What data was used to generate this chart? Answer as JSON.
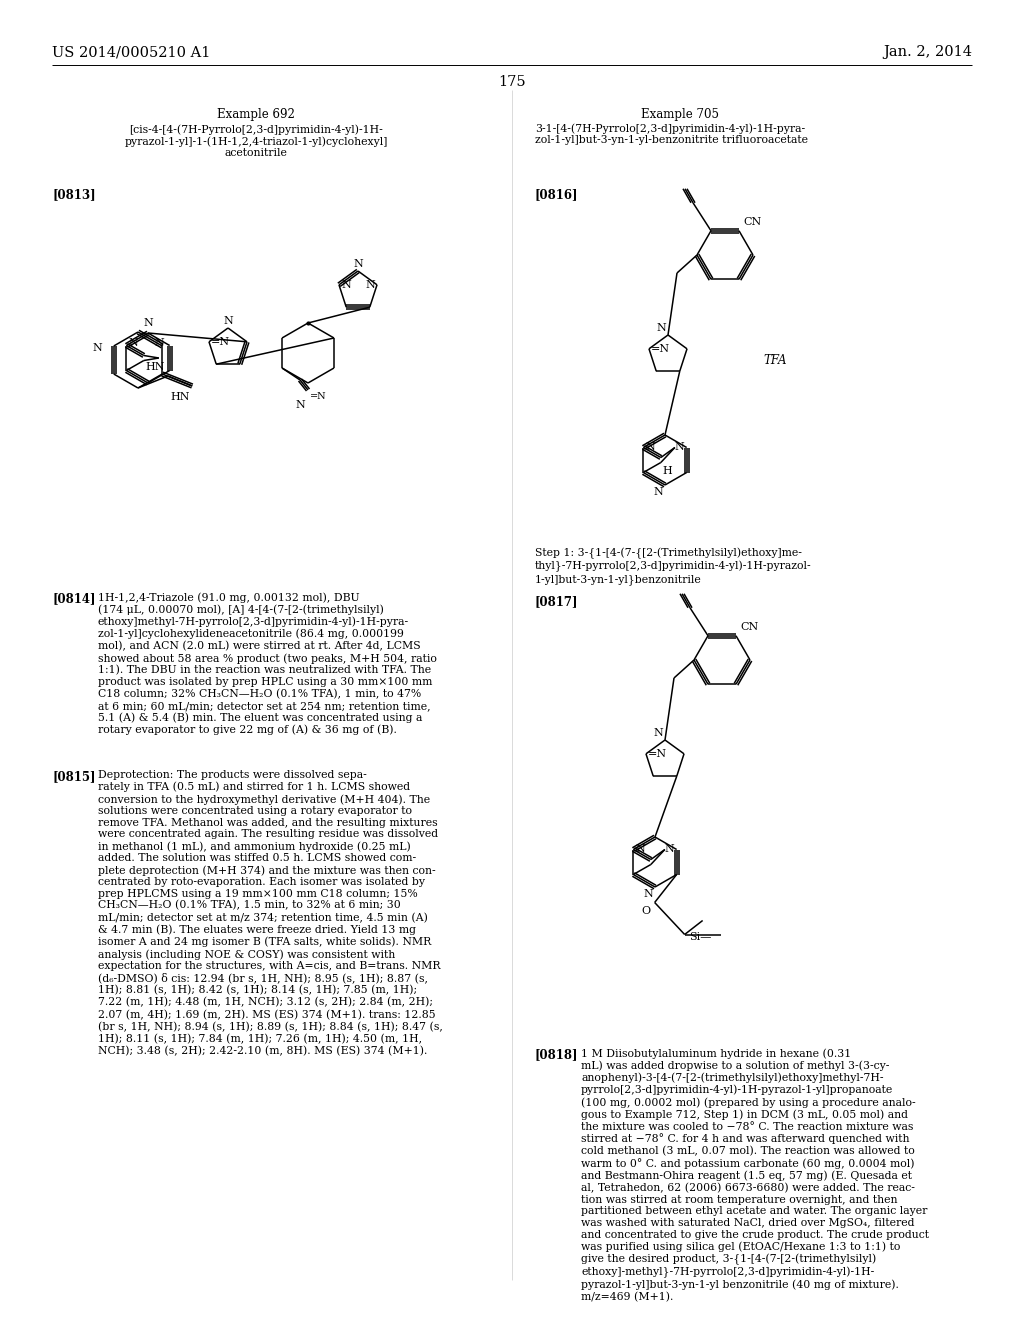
{
  "page_number": "175",
  "header_left": "US 2014/0005210 A1",
  "header_right": "Jan. 2, 2014",
  "background_color": "#ffffff",
  "text_color": "#000000",
  "font_size_header": 10.5,
  "font_size_body": 7.8,
  "font_size_example": 8.5,
  "font_size_tag": 8.5,
  "example692_title": "Example 692",
  "example692_name": "[cis-4-[4-(7H-Pyrrolo[2,3-d]pyrimidin-4-yl)-1H-\npyrazol-1-yl]-1-(1H-1,2,4-triazol-1-yl)cyclohexyl]\nacetonitrile",
  "example705_title": "Example 705",
  "example705_name": "3-1-[4-(7H-Pyrrolo[2,3-d]pyrimidin-4-yl)-1H-pyra-\nzol-1-yl]but-3-yn-1-yl-benzonitrite trifluoroacetate",
  "example705_tag": "[0816]",
  "example692_tag": "[0813]",
  "step1_title": "Step 1: 3-{1-[4-(7-{[2-(Trimethylsilyl)ethoxy]me-\nthyl}-7H-pyrrolo[2,3-d]pyrimidin-4-yl)-1H-pyrazol-\n1-yl]but-3-yn-1-yl}benzonitrile",
  "step1_tag": "[0817]",
  "para0814_tag": "[0814]",
  "para0814_text": "1H-1,2,4-Triazole (91.0 mg, 0.00132 mol), DBU\n(174 μL, 0.00070 mol), [A] 4-[4-(7-[2-(trimethylsilyl)\nethoxy]methyl-7H-pyrrolo[2,3-d]pyrimidin-4-yl)-1H-pyra-\nzol-1-yl]cyclohexylideneacetonitrile (86.4 mg, 0.000199\nmol), and ACN (2.0 mL) were stirred at rt. After 4d, LCMS\nshowed about 58 area % product (two peaks, M+H 504, ratio\n1:1). The DBU in the reaction was neutralized with TFA. The\nproduct was isolated by prep HPLC using a 30 mm×100 mm\nC18 column; 32% CH₃CN—H₂O (0.1% TFA), 1 min, to 47%\nat 6 min; 60 mL/min; detector set at 254 nm; retention time,\n5.1 (A) & 5.4 (B) min. The eluent was concentrated using a\nrotary evaporator to give 22 mg of (A) & 36 mg of (B).",
  "para0815_tag": "[0815]",
  "para0815_text": "Deprotection: The products were dissolved sepa-\nrately in TFA (0.5 mL) and stirred for 1 h. LCMS showed\nconversion to the hydroxymethyl derivative (M+H 404). The\nsolutions were concentrated using a rotary evaporator to\nremove TFA. Methanol was added, and the resulting mixtures\nwere concentrated again. The resulting residue was dissolved\nin methanol (1 mL), and ammonium hydroxide (0.25 mL)\nadded. The solution was stiffed 0.5 h. LCMS showed com-\nplete deprotection (M+H 374) and the mixture was then con-\ncentrated by roto-evaporation. Each isomer was isolated by\nprep HPLCMS using a 19 mm×100 mm C18 column; 15%\nCH₃CN—H₂O (0.1% TFA), 1.5 min, to 32% at 6 min; 30\nmL/min; detector set at m/z 374; retention time, 4.5 min (A)\n& 4.7 min (B). The eluates were freeze dried. Yield 13 mg\nisomer A and 24 mg isomer B (TFA salts, white solids). NMR\nanalysis (including NOE & COSY) was consistent with\nexpectation for the structures, with A=cis, and B=trans. NMR\n(d₆-DMSO) δ cis: 12.94 (br s, 1H, NH); 8.95 (s, 1H); 8.87 (s,\n1H); 8.81 (s, 1H); 8.42 (s, 1H); 8.14 (s, 1H); 7.85 (m, 1H);\n7.22 (m, 1H); 4.48 (m, 1H, NCH); 3.12 (s, 2H); 2.84 (m, 2H);\n2.07 (m, 4H); 1.69 (m, 2H). MS (ES) 374 (M+1). trans: 12.85\n(br s, 1H, NH); 8.94 (s, 1H); 8.89 (s, 1H); 8.84 (s, 1H); 8.47 (s,\n1H); 8.11 (s, 1H); 7.84 (m, 1H); 7.26 (m, 1H); 4.50 (m, 1H,\nNCH); 3.48 (s, 2H); 2.42-2.10 (m, 8H). MS (ES) 374 (M+1).",
  "para0818_tag": "[0818]",
  "para0818_text": "1 M Diisobutylaluminum hydride in hexane (0.31\nmL) was added dropwise to a solution of methyl 3-(3-cy-\nanophenyl)-3-[4-(7-[2-(trimethylsilyl)ethoxy]methyl-7H-\npyrrolo[2,3-d]pyrimidin-4-yl)-1H-pyrazol-1-yl]propanoate\n(100 mg, 0.0002 mol) (prepared by using a procedure analo-\ngous to Example 712, Step 1) in DCM (3 mL, 0.05 mol) and\nthe mixture was cooled to −78° C. The reaction mixture was\nstirred at −78° C. for 4 h and was afterward quenched with\ncold methanol (3 mL, 0.07 mol). The reaction was allowed to\nwarm to 0° C. and potassium carbonate (60 mg, 0.0004 mol)\nand Bestmann-Ohira reagent (1.5 eq, 57 mg) (E. Quesada et\nal, Tetrahedon, 62 (2006) 6673-6680) were added. The reac-\ntion was stirred at room temperature overnight, and then\npartitioned between ethyl acetate and water. The organic layer\nwas washed with saturated NaCl, dried over MgSO₄, filtered\nand concentrated to give the crude product. The crude product\nwas purified using silica gel (EtOAC/Hexane 1:3 to 1:1) to\ngive the desired product, 3-{1-[4-(7-[2-(trimethylsilyl)\nethoxy]-methyl}-7H-pyrrolo[2,3-d]pyrimidin-4-yl)-1H-\npyrazol-1-yl]but-3-yn-1-yl benzonitrile (40 mg of mixture).\nm/z=469 (M+1)."
}
